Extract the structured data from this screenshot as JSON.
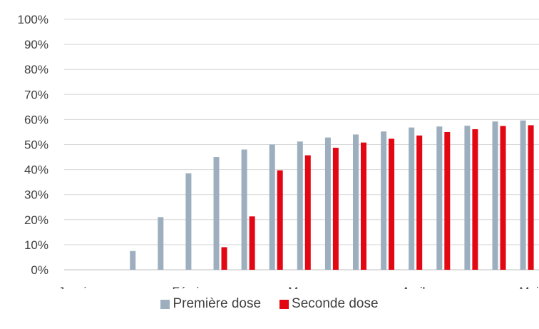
{
  "chart_data": {
    "type": "bar",
    "title": "",
    "xlabel": "",
    "ylabel": "",
    "ylim": [
      0,
      100
    ],
    "y_ticks": [
      "0%",
      "10%",
      "20%",
      "30%",
      "40%",
      "50%",
      "60%",
      "70%",
      "80%",
      "90%",
      "100%"
    ],
    "x_tick_labels": [
      "Janvier",
      "Février",
      "Mars",
      "Avril",
      "Mai"
    ],
    "grid": true,
    "legend_position": "bottom",
    "colors": {
      "Première dose": "#9dafbf",
      "Seconde dose": "#e30613"
    },
    "series": [
      {
        "name": "Première dose",
        "values": [
          0,
          0,
          7.5,
          21,
          38.5,
          45,
          48,
          50,
          51.2,
          52.8,
          54,
          55.2,
          56.8,
          57.2,
          57.5,
          59.2,
          59.6
        ]
      },
      {
        "name": "Seconde dose",
        "values": [
          0,
          0,
          0,
          0,
          0,
          9,
          21.3,
          39.7,
          45.7,
          48.7,
          50.8,
          52.3,
          53.6,
          55,
          56.1,
          57.4,
          57.7
        ]
      }
    ]
  },
  "legend": {
    "first_label": "Première dose",
    "second_label": "Seconde dose"
  }
}
